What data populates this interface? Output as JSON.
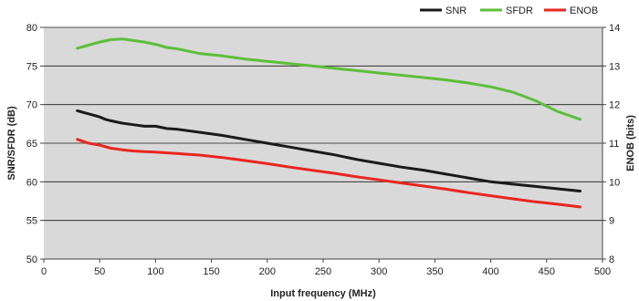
{
  "chart_data": {
    "type": "line",
    "xlabel": "Input frequency (MHz)",
    "ylabel_left": "SNR/SFDR (dB)",
    "ylabel_right": "ENOB (bits)",
    "xlim": [
      0,
      500
    ],
    "ylim_left": [
      50,
      80
    ],
    "ylim_right": [
      8,
      14
    ],
    "x_ticks": [
      "0",
      "50",
      "100",
      "150",
      "200",
      "250",
      "300",
      "350",
      "400",
      "450",
      "500"
    ],
    "y_left_ticks": [
      "50",
      "55",
      "60",
      "65",
      "70",
      "75",
      "80"
    ],
    "y_right_ticks": [
      "8",
      "9",
      "10",
      "11",
      "12",
      "13",
      "14"
    ],
    "grid": true,
    "plot_background": "#d9d9d9",
    "legend_position": "top-right",
    "series": [
      {
        "name": "SNR",
        "axis": "left",
        "color": "#1a1a1a",
        "x": [
          30,
          40,
          50,
          55,
          60,
          70,
          80,
          90,
          100,
          110,
          120,
          140,
          160,
          180,
          200,
          220,
          240,
          260,
          280,
          300,
          320,
          340,
          360,
          380,
          400,
          420,
          440,
          460,
          480
        ],
        "y": [
          69.2,
          68.8,
          68.4,
          68.1,
          67.9,
          67.6,
          67.4,
          67.2,
          67.2,
          66.9,
          66.8,
          66.4,
          66.0,
          65.5,
          65.0,
          64.5,
          64.0,
          63.5,
          62.9,
          62.4,
          61.9,
          61.5,
          61.0,
          60.5,
          60.0,
          59.7,
          59.4,
          59.1,
          58.8
        ]
      },
      {
        "name": "SFDR",
        "axis": "left",
        "color": "#5cbf3a",
        "x": [
          30,
          40,
          50,
          60,
          70,
          80,
          90,
          100,
          110,
          120,
          140,
          160,
          180,
          200,
          220,
          240,
          260,
          280,
          300,
          320,
          340,
          360,
          380,
          400,
          420,
          440,
          460,
          480
        ],
        "y": [
          77.3,
          77.7,
          78.1,
          78.4,
          78.5,
          78.3,
          78.1,
          77.8,
          77.4,
          77.2,
          76.6,
          76.3,
          75.9,
          75.6,
          75.3,
          75.0,
          74.7,
          74.4,
          74.1,
          73.8,
          73.5,
          73.2,
          72.8,
          72.3,
          71.6,
          70.5,
          69.1,
          68.1
        ]
      },
      {
        "name": "ENOB",
        "axis": "right",
        "color": "#e8261f",
        "x": [
          30,
          40,
          50,
          60,
          70,
          80,
          90,
          100,
          120,
          140,
          160,
          180,
          200,
          220,
          240,
          260,
          280,
          300,
          320,
          340,
          360,
          380,
          400,
          420,
          440,
          460,
          480
        ],
        "y": [
          11.1,
          11.0,
          10.95,
          10.87,
          10.83,
          10.8,
          10.78,
          10.77,
          10.73,
          10.69,
          10.63,
          10.55,
          10.47,
          10.38,
          10.3,
          10.22,
          10.13,
          10.05,
          9.97,
          9.89,
          9.81,
          9.72,
          9.64,
          9.56,
          9.48,
          9.42,
          9.35
        ]
      }
    ]
  }
}
